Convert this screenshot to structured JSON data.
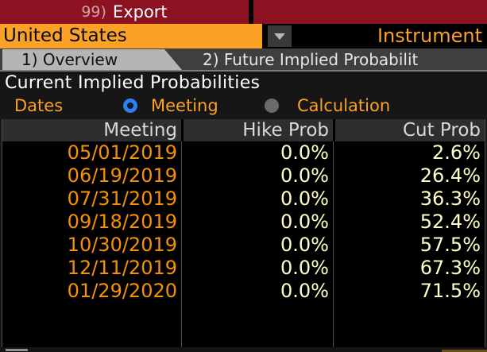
{
  "topbar": {
    "export_item": {
      "number": "99)",
      "label": "Export"
    }
  },
  "security_bar": {
    "country": "United States",
    "instrument_label": "Instrument"
  },
  "tabs": {
    "overview": "1) Overview",
    "future_implied": "2) Future Implied Probabilit"
  },
  "panel": {
    "title": "Current Implied Probabilities",
    "dates_label": "Dates",
    "radio_options": {
      "meeting": {
        "label": "Meeting",
        "selected": true
      },
      "calculation": {
        "label": "Calculation",
        "selected": false
      }
    }
  },
  "table": {
    "columns": [
      "Meeting",
      "Hike Prob",
      "Cut Prob"
    ],
    "rows": [
      [
        "05/01/2019",
        "0.0%",
        "2.6%"
      ],
      [
        "06/19/2019",
        "0.0%",
        "26.4%"
      ],
      [
        "07/31/2019",
        "0.0%",
        "36.3%"
      ],
      [
        "09/18/2019",
        "0.0%",
        "52.4%"
      ],
      [
        "10/30/2019",
        "0.0%",
        "57.5%"
      ],
      [
        "12/11/2019",
        "0.0%",
        "67.3%"
      ],
      [
        "01/29/2020",
        "0.0%",
        "71.5%"
      ]
    ]
  },
  "colors": {
    "menu_red": "#8c1221",
    "accent_orange": "#fba226",
    "date_orange": "#f79100",
    "value_yellow": "#ffffc8",
    "radio_blue": "#2f80ea",
    "tab_active_gray": "#b5b5b5"
  }
}
